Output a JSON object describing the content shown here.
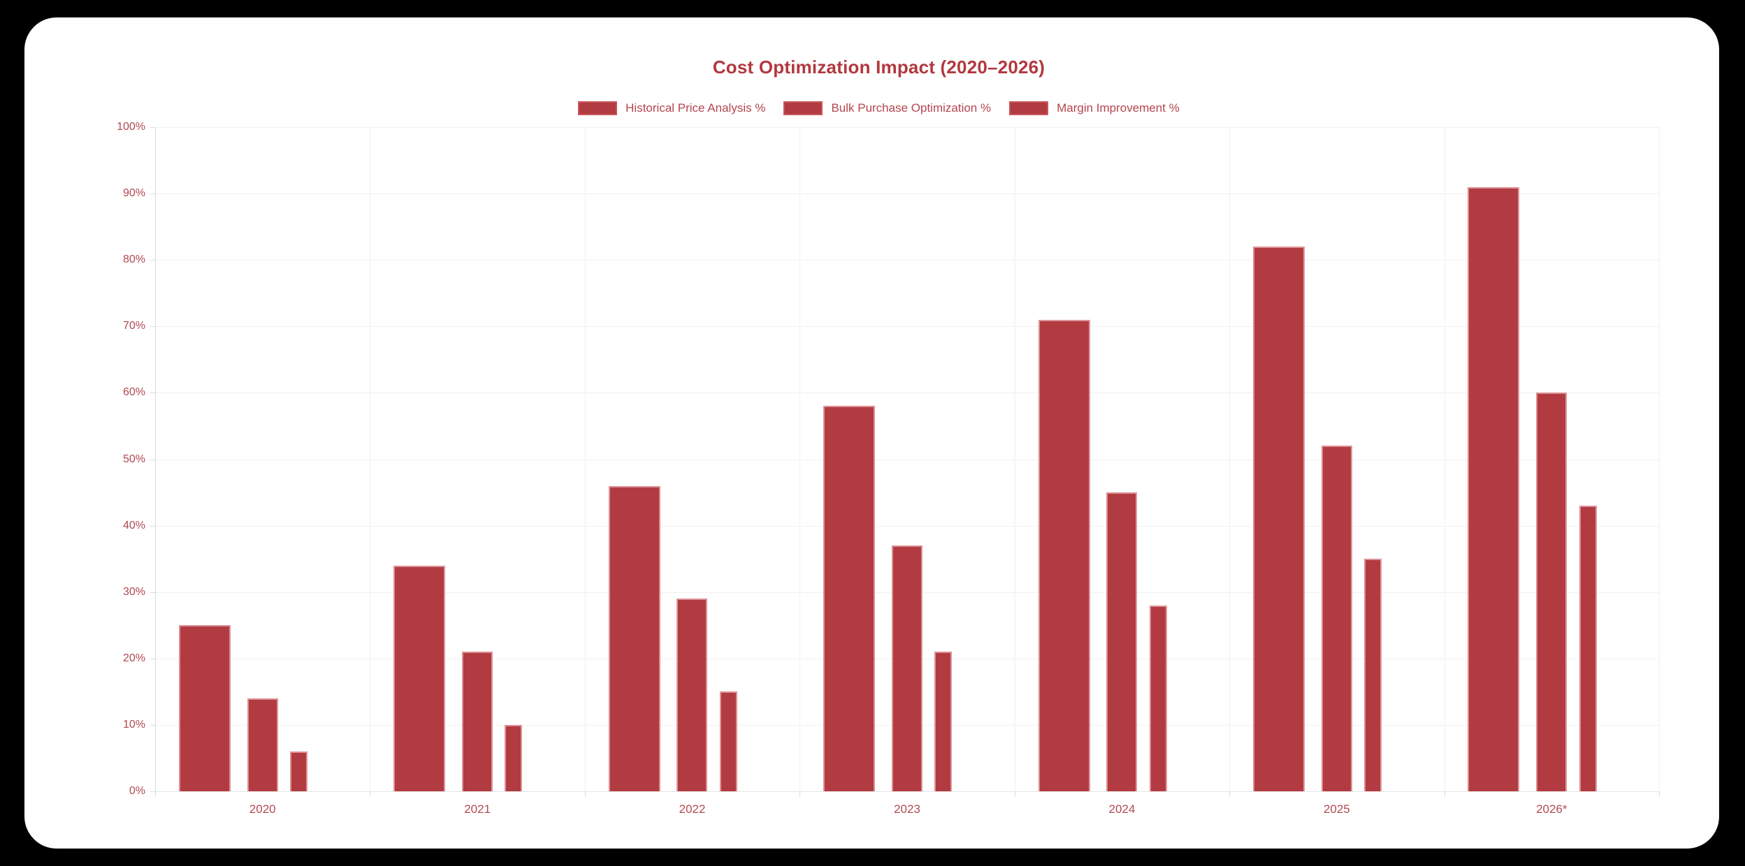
{
  "app": {
    "background": "#000000",
    "card_background": "#ffffff"
  },
  "chart_data": {
    "type": "bar",
    "title": "Cost Optimization Impact (2020–2026)",
    "categories": [
      "2020",
      "2021",
      "2022",
      "2023",
      "2024",
      "2025",
      "2026*"
    ],
    "series": [
      {
        "name": "Historical Price Analysis %",
        "values": [
          25,
          34,
          46,
          58,
          71,
          82,
          91
        ]
      },
      {
        "name": "Bulk Purchase Optimization %",
        "values": [
          14,
          21,
          29,
          37,
          45,
          52,
          60
        ]
      },
      {
        "name": "Margin Improvement %",
        "values": [
          6,
          10,
          15,
          21,
          28,
          35,
          43
        ]
      }
    ],
    "xlabel": "",
    "ylabel": "",
    "ylim": [
      0,
      100
    ],
    "ytick_step": 10,
    "ytick_suffix": "%",
    "grid": true,
    "legend_position": "top",
    "bar_color": "#b23b41",
    "bar_border_color": "#dd9398",
    "title_color": "#b2383f",
    "legend_text_color": "#b5454c",
    "tick_label_color": "#b04a51",
    "grid_color": "#f1f1f1",
    "axis_color": "#d9d9d9"
  }
}
